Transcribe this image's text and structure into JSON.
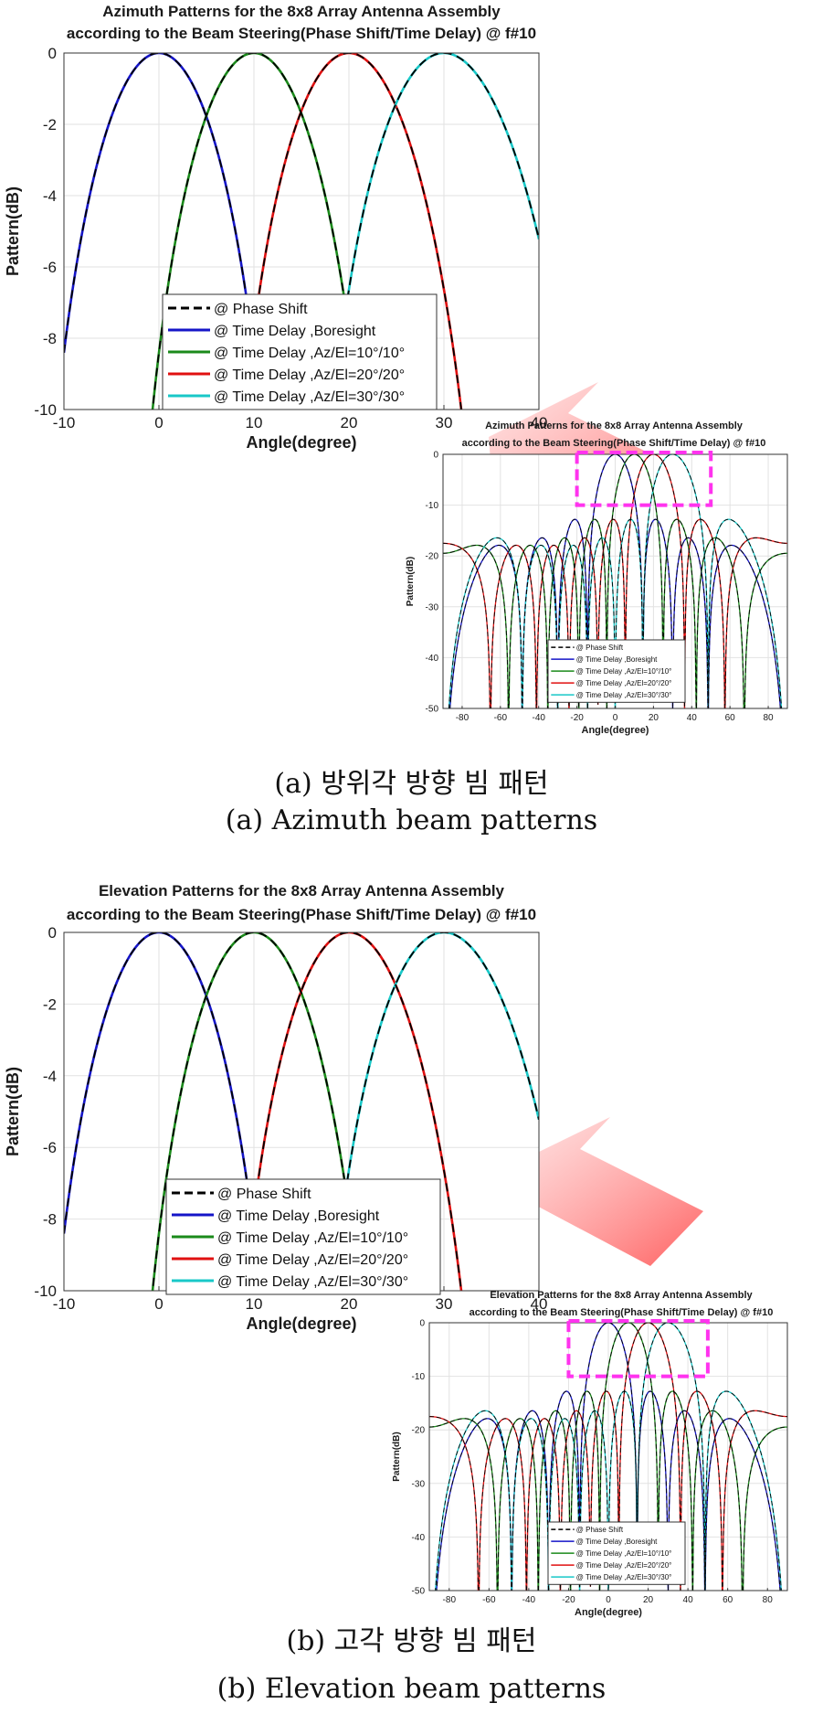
{
  "captions": {
    "a_ko": "(a) 방위각 방향 빔 패턴",
    "a_en": "(a) Azimuth beam patterns",
    "b_ko": "(b) 고각 방향 빔 패턴",
    "b_en": "(b) Elevation beam patterns"
  },
  "colors": {
    "phase_shift": "#000000",
    "boresight": "#1515c8",
    "az10": "#1a8a1a",
    "az20": "#e01010",
    "az30": "#18c8c8",
    "highlight_box": "#ff33ee",
    "arrow": "#ff6666"
  },
  "legend_labels": [
    "@ Phase Shift",
    "@ Time Delay ,Boresight",
    "@ Time Delay ,Az/El=10°/10°",
    "@ Time Delay ,Az/El=20°/20°",
    "@ Time Delay ,Az/El=30°/30°"
  ],
  "chart_data": [
    {
      "id": "az_main",
      "type": "line",
      "title_lines": [
        "Azimuth Patterns for the 8x8 Array Antenna Assembly",
        "according to the Beam Steering(Phase Shift/Time Delay) @ f#10"
      ],
      "xlabel": "Angle(degree)",
      "ylabel": "Pattern(dB)",
      "xlim": [
        -10,
        40
      ],
      "ylim": [
        -10,
        0
      ],
      "xticks": [
        -10,
        0,
        10,
        20,
        30,
        40
      ],
      "yticks": [
        0,
        -2,
        -4,
        -6,
        -8,
        -10
      ],
      "grid": true,
      "legend_position": "lower-center",
      "series": [
        {
          "name": "@ Phase Shift",
          "style": "dashed",
          "steer": [
            0,
            10,
            20,
            30
          ]
        },
        {
          "name": "@ Time Delay ,Boresight",
          "steer": 0,
          "x": [
            -10,
            -5,
            0,
            5,
            9
          ],
          "y": [
            -8.0,
            -2.0,
            0,
            -2.0,
            -8.0
          ]
        },
        {
          "name": "@ Time Delay ,Az/El=10°/10°",
          "steer": 10,
          "x": [
            0,
            5,
            10,
            15,
            20
          ],
          "y": [
            -10.0,
            -2.0,
            0,
            -2.0,
            -10.0
          ]
        },
        {
          "name": "@ Time Delay ,Az/El=20°/20°",
          "steer": 20,
          "x": [
            9.5,
            15,
            20,
            25,
            31
          ],
          "y": [
            -10.0,
            -2.2,
            0,
            -2.2,
            -10.0
          ]
        },
        {
          "name": "@ Time Delay ,Az/El=30°/30°",
          "steer": 30,
          "x": [
            20,
            25,
            30,
            35,
            40
          ],
          "y": [
            -7.8,
            -2.3,
            0,
            -2.3,
            -3.8
          ]
        }
      ]
    },
    {
      "id": "az_full",
      "type": "line",
      "title_lines": [
        "Azimuth Patterns for the 8x8 Array Antenna Assembly",
        "according to the Beam Steering(Phase Shift/Time Delay) @ f#10"
      ],
      "xlabel": "Angle(degree)",
      "ylabel": "Pattern(dB)",
      "xlim": [
        -90,
        90
      ],
      "ylim": [
        -50,
        0
      ],
      "xticks": [
        -80,
        -60,
        -40,
        -20,
        0,
        20,
        40,
        60,
        80
      ],
      "yticks": [
        0,
        -10,
        -20,
        -30,
        -40,
        -50
      ],
      "grid": true,
      "legend_position": "lower-center",
      "highlight_box": {
        "x": [
          -20,
          50
        ],
        "y": [
          0,
          -10
        ]
      },
      "series": [
        {
          "name": "@ Phase Shift",
          "style": "dashed",
          "steer": [
            0,
            10,
            20,
            30
          ]
        },
        {
          "name": "@ Time Delay ,Boresight",
          "steer": 0,
          "x": [
            -90,
            -60,
            0,
            60,
            90
          ],
          "y": [
            -35,
            -18,
            0,
            -18,
            -35
          ]
        },
        {
          "name": "@ Time Delay ,Az/El=10°/10°",
          "steer": 10,
          "x": [
            -90,
            -50,
            10,
            70,
            90
          ],
          "y": [
            -18,
            -18,
            0,
            -18,
            -22
          ]
        },
        {
          "name": "@ Time Delay ,Az/El=20°/20°",
          "steer": 20,
          "x": [
            -90,
            -40,
            20,
            80,
            90
          ],
          "y": [
            -22,
            -18,
            0,
            -17,
            -17
          ]
        },
        {
          "name": "@ Time Delay ,Az/El=30°/30°",
          "steer": 30,
          "x": [
            -90,
            -30,
            30,
            90
          ],
          "y": [
            -25,
            -18,
            0,
            -16
          ]
        }
      ]
    },
    {
      "id": "el_main",
      "type": "line",
      "title_lines": [
        "Elevation Patterns for the 8x8 Array Antenna Assembly",
        "according to the Beam Steering(Phase Shift/Time Delay) @ f#10"
      ],
      "xlabel": "Angle(degree)",
      "ylabel": "Pattern(dB)",
      "xlim": [
        -10,
        40
      ],
      "ylim": [
        -10,
        0
      ],
      "xticks": [
        -10,
        0,
        10,
        20,
        30,
        40
      ],
      "yticks": [
        0,
        -2,
        -4,
        -6,
        -8,
        -10
      ],
      "grid": true,
      "legend_position": "lower-center",
      "series": [
        {
          "name": "@ Phase Shift",
          "style": "dashed",
          "steer": [
            0,
            10,
            20,
            30
          ]
        },
        {
          "name": "@ Time Delay ,Boresight",
          "steer": 0,
          "x": [
            -9.5,
            -5,
            0,
            5,
            9.5
          ],
          "y": [
            -10.0,
            -2.0,
            0,
            -2.0,
            -10.0
          ]
        },
        {
          "name": "@ Time Delay ,Az/El=10°/10°",
          "steer": 10,
          "x": [
            0.5,
            5,
            10,
            15,
            19.5
          ],
          "y": [
            -10.0,
            -2.0,
            0,
            -2.0,
            -10.0
          ]
        },
        {
          "name": "@ Time Delay ,Az/El=20°/20°",
          "steer": 20,
          "x": [
            10.5,
            15,
            20,
            25,
            29.5
          ],
          "y": [
            -10.0,
            -2.3,
            0,
            -2.3,
            -10.0
          ]
        },
        {
          "name": "@ Time Delay ,Az/El=30°/30°",
          "steer": 30,
          "x": [
            21,
            25,
            30,
            35,
            40
          ],
          "y": [
            -10.0,
            -2.5,
            0,
            -2.5,
            -10.0
          ]
        }
      ]
    },
    {
      "id": "el_full",
      "type": "line",
      "title_lines": [
        "Elevation Patterns for the 8x8 Array Antenna Assembly",
        "according to the Beam Steering(Phase Shift/Time Delay) @ f#10"
      ],
      "xlabel": "Angle(degree)",
      "ylabel": "Pattern(dB)",
      "xlim": [
        -90,
        90
      ],
      "ylim": [
        -50,
        0
      ],
      "xticks": [
        -80,
        -60,
        -40,
        -20,
        0,
        20,
        40,
        60,
        80
      ],
      "yticks": [
        0,
        -10,
        -20,
        -30,
        -40,
        -50
      ],
      "grid": true,
      "legend_position": "lower-center",
      "highlight_box": {
        "x": [
          -20,
          50
        ],
        "y": [
          0,
          -10
        ]
      },
      "series": [
        {
          "name": "@ Phase Shift",
          "style": "dashed",
          "steer": [
            0,
            10,
            20,
            30
          ]
        },
        {
          "name": "@ Time Delay ,Boresight",
          "steer": 0,
          "x": [
            -90,
            -60,
            0,
            60,
            90
          ],
          "y": [
            -22,
            -23,
            0,
            -23,
            -22
          ]
        },
        {
          "name": "@ Time Delay ,Az/El=10°/10°",
          "steer": 10,
          "x": [
            -90,
            -50,
            10,
            70,
            90
          ],
          "y": [
            -25,
            -24,
            0,
            -24,
            -36
          ]
        },
        {
          "name": "@ Time Delay ,Az/El=20°/20°",
          "steer": 20,
          "x": [
            -90,
            -40,
            20,
            80,
            90
          ],
          "y": [
            -36,
            -25,
            0,
            -25,
            -30
          ]
        },
        {
          "name": "@ Time Delay ,Az/El=30°/30°",
          "steer": 30,
          "x": [
            -90,
            -30,
            30,
            90
          ],
          "y": [
            -38,
            -26,
            0,
            -30
          ]
        }
      ]
    }
  ]
}
